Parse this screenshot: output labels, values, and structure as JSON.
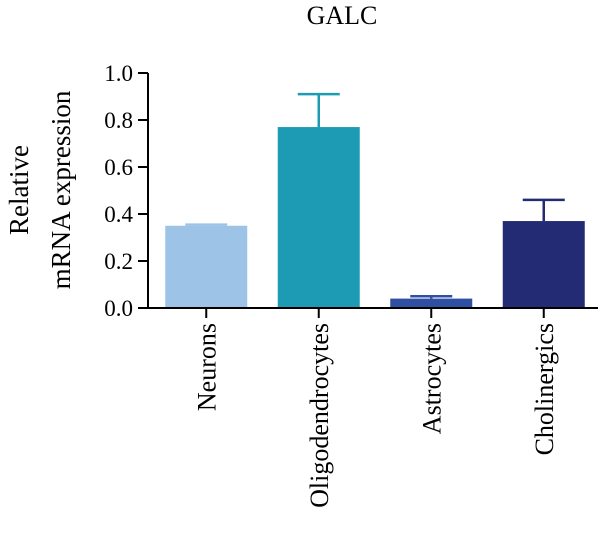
{
  "chart_data": {
    "type": "bar",
    "title": "GALC",
    "ylabel": [
      "Relative",
      "mRNA expression"
    ],
    "xlabel": "",
    "ylim": [
      0,
      1.0
    ],
    "yticks": [
      0.0,
      0.2,
      0.4,
      0.6,
      0.8,
      1.0
    ],
    "ytick_labels": [
      "0.0",
      "0.2",
      "0.4",
      "0.6",
      "0.8",
      "1.0"
    ],
    "categories": [
      "Neurons",
      "Oligodendrocytes",
      "Astrocytes",
      "Cholinergics"
    ],
    "values": [
      0.35,
      0.77,
      0.04,
      0.37
    ],
    "errors": [
      0.005,
      0.14,
      0.01,
      0.09
    ],
    "colors": [
      "#9dc3e6",
      "#1d9bb5",
      "#2f4fa3",
      "#232b75"
    ]
  }
}
